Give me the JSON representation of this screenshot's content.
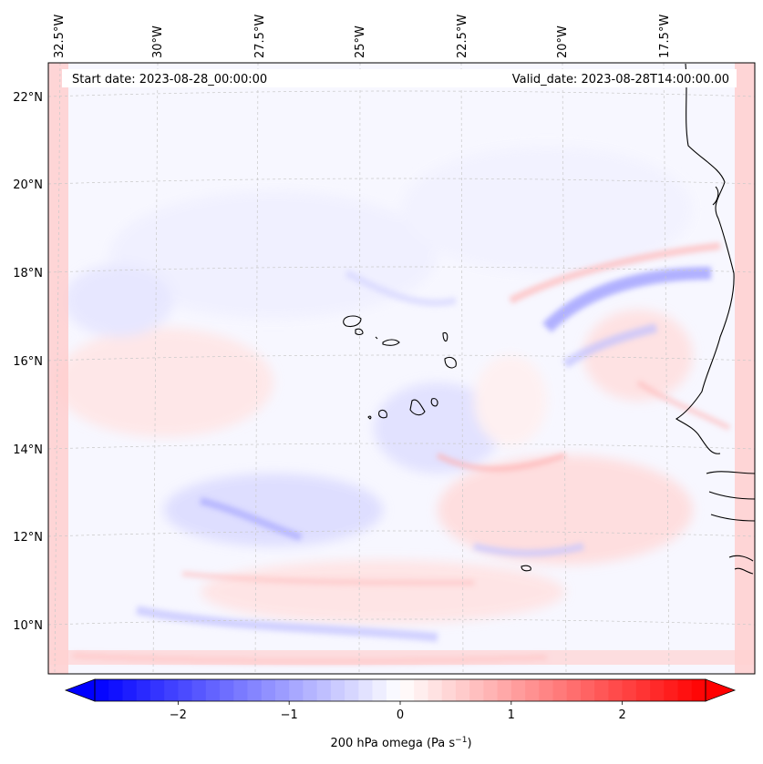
{
  "map": {
    "start_label": "Start date: 2023-08-28_00:00:00",
    "valid_label": "Valid_date: 2023-08-28T14:00:00.00",
    "lon_labels": [
      "32.5°W",
      "30°W",
      "27.5°W",
      "25°W",
      "22.5°W",
      "20°W",
      "17.5°W"
    ],
    "lat_labels": [
      "22°N",
      "20°N",
      "18°N",
      "16°N",
      "14°N",
      "12°N",
      "10°N"
    ]
  },
  "colorbar": {
    "label_main": "200 hPa omega (Pa s",
    "label_exp": "−1",
    "label_close": ")",
    "vmin": -2.75,
    "vmax": 2.75,
    "ticks": [
      {
        "value": -2,
        "label": "−2"
      },
      {
        "value": -1,
        "label": "−1"
      },
      {
        "value": 0,
        "label": "0"
      },
      {
        "value": 1,
        "label": "1"
      },
      {
        "value": 2,
        "label": "2"
      }
    ],
    "colors": {
      "negative": "#0000ff",
      "zero": "#ffffff",
      "positive": "#ff0000"
    }
  },
  "colors": {
    "coast": "#000000",
    "grid": "#c8c8c8"
  }
}
